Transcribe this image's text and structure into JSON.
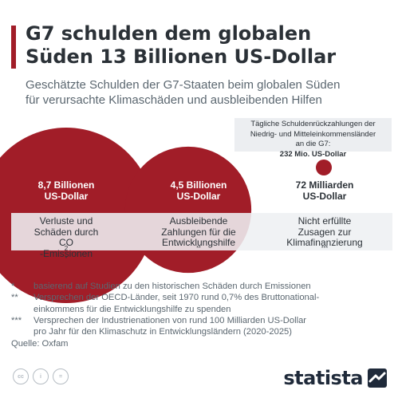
{
  "title": [
    "G7 schulden dem globalen",
    "Süden 13 Billionen US-Dollar"
  ],
  "subtitle": [
    "Geschätzte Schulden der G7-Staaten beim globalen Süden",
    "für verursachte Klimaschäden und ausbleibenden Hilfen"
  ],
  "note_box": {
    "lines": [
      "Tägliche Schuldenrückzahlungen der",
      "Niedrig- und Mitteleinkommensländer"
    ],
    "last_prefix": "an die G7: ",
    "last_value": "232 Mio. US-Dollar"
  },
  "chart_data": {
    "type": "bubble",
    "unit": "US-Dollar",
    "colors": {
      "bubble": "#a11d28"
    },
    "items": [
      {
        "value_billion_usd": 8700,
        "value_lines": [
          "8,7 Billionen",
          "US-Dollar"
        ],
        "label_lines": [
          "Verluste und",
          "Schäden durch"
        ],
        "label_last": "CO",
        "label_sub": "2",
        "label_tail": "-Emissionen",
        "footnote_mark": "*"
      },
      {
        "value_billion_usd": 4500,
        "value_lines": [
          "4,5 Billionen",
          "US-Dollar"
        ],
        "label_lines": [
          "Ausbleibende",
          "Zahlungen für die"
        ],
        "label_last": "Entwicklungshilfe",
        "label_sub": "",
        "label_tail": "",
        "footnote_mark": "**"
      },
      {
        "value_billion_usd": 72,
        "value_lines": [
          "72 Milliarden",
          "US-Dollar"
        ],
        "label_lines": [
          "Nicht erfüllte",
          "Zusagen zur"
        ],
        "label_last": "Klimafinanzierung",
        "label_sub": "",
        "label_tail": "",
        "footnote_mark": "***"
      }
    ]
  },
  "footnotes": [
    {
      "mark": "*",
      "lines": [
        "basierend auf Studien zu den historischen Schäden durch Emissionen"
      ]
    },
    {
      "mark": "**",
      "lines": [
        "Versprechen der OECD-Länder, seit 1970 rund 0,7% des Bruttonational-",
        "einkommens für die Entwicklungshilfe zu spenden"
      ]
    },
    {
      "mark": "***",
      "lines": [
        "Versprechen der Industrienationen von rund 100 Milliarden US-Dollar",
        "pro Jahr für den Klimaschutz in Entwicklungsländern (2020-2025)"
      ]
    }
  ],
  "source": "Quelle: Oxfam",
  "license_icons": [
    "cc-icon",
    "info-icon",
    "equals-icon"
  ],
  "license_glyphs": [
    "cc",
    "i",
    "="
  ],
  "brand": "statista"
}
